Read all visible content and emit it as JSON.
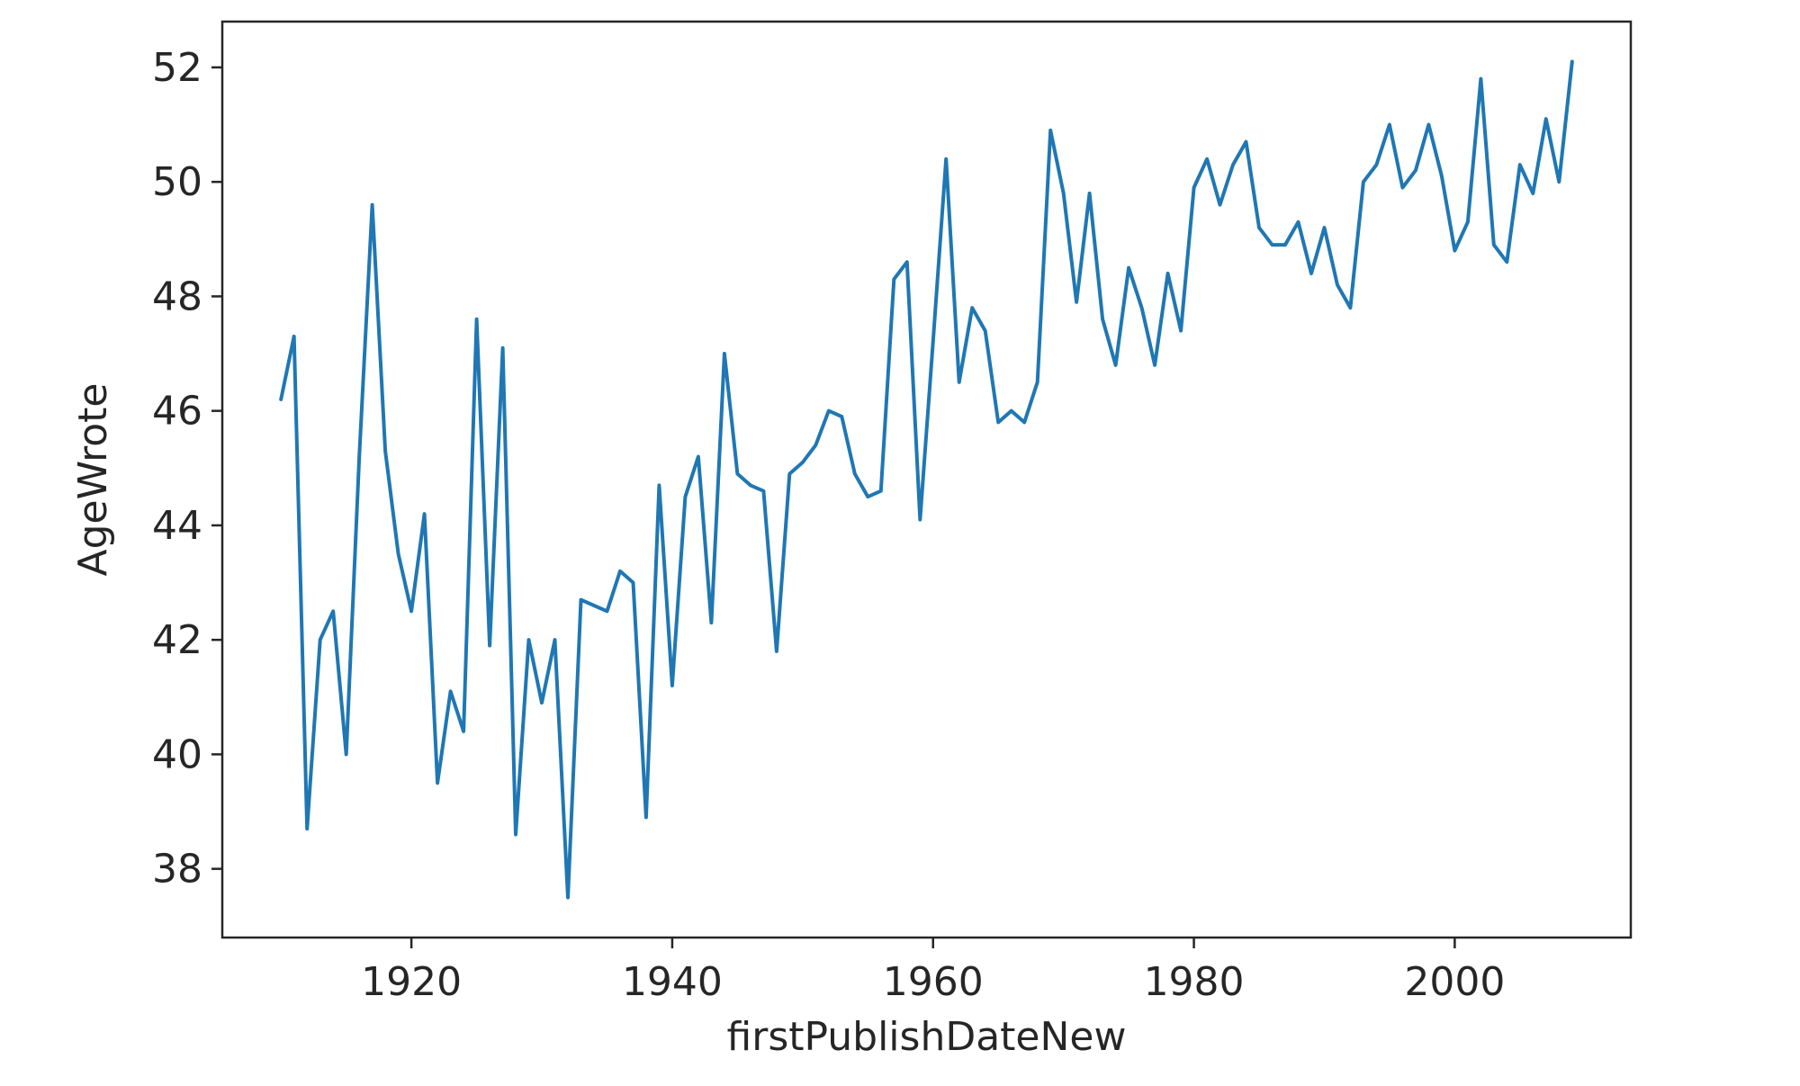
{
  "chart_data": {
    "type": "line",
    "xlabel": "firstPublishDateNew",
    "ylabel": "AgeWrote",
    "xlim": [
      1905.5,
      2013.5
    ],
    "ylim": [
      36.8,
      52.8
    ],
    "xticks": [
      1920,
      1940,
      1960,
      1980,
      2000
    ],
    "yticks": [
      38,
      40,
      42,
      44,
      46,
      48,
      50,
      52
    ],
    "grid": false,
    "line_color": "#1f77b4",
    "series": [
      {
        "x": [
          1910,
          1911,
          1912,
          1913,
          1914,
          1915,
          1916,
          1917,
          1918,
          1919,
          1920,
          1921,
          1922,
          1923,
          1924,
          1925,
          1926,
          1927,
          1928,
          1929,
          1930,
          1931,
          1932,
          1933,
          1934,
          1935,
          1936,
          1937,
          1938,
          1939,
          1940,
          1941,
          1942,
          1943,
          1944,
          1945,
          1946,
          1947,
          1948,
          1949,
          1950,
          1951,
          1952,
          1953,
          1954,
          1955,
          1956,
          1957,
          1958,
          1959,
          1960,
          1961,
          1962,
          1963,
          1964,
          1965,
          1966,
          1967,
          1968,
          1969,
          1970,
          1971,
          1972,
          1973,
          1974,
          1975,
          1976,
          1977,
          1978,
          1979,
          1980,
          1981,
          1982,
          1983,
          1984,
          1985,
          1986,
          1987,
          1988,
          1989,
          1990,
          1991,
          1992,
          1993,
          1994,
          1995,
          1996,
          1997,
          1998,
          1999,
          2000,
          2001,
          2002,
          2003,
          2004,
          2005,
          2006,
          2007,
          2008,
          2009
        ],
        "y": [
          46.2,
          47.3,
          38.7,
          42.0,
          42.5,
          40.0,
          45.2,
          49.6,
          45.3,
          43.5,
          42.5,
          44.2,
          39.5,
          41.1,
          40.4,
          47.6,
          41.9,
          47.1,
          38.6,
          42.0,
          40.9,
          42.0,
          37.5,
          42.7,
          42.6,
          42.5,
          43.2,
          43.0,
          38.9,
          44.7,
          41.2,
          44.5,
          45.2,
          42.3,
          47.0,
          44.9,
          44.7,
          44.6,
          41.8,
          44.9,
          45.1,
          45.4,
          46.0,
          45.9,
          44.9,
          44.5,
          44.6,
          48.3,
          48.6,
          44.1,
          47.2,
          50.4,
          46.5,
          47.8,
          47.4,
          45.8,
          46.0,
          45.8,
          46.5,
          50.9,
          49.8,
          47.9,
          49.8,
          47.6,
          46.8,
          48.5,
          47.8,
          46.8,
          48.4,
          47.4,
          49.9,
          50.4,
          49.6,
          50.3,
          50.7,
          49.2,
          48.9,
          48.9,
          49.3,
          48.4,
          49.2,
          48.2,
          47.8,
          50.0,
          50.3,
          51.0,
          49.9,
          50.2,
          51.0,
          50.1,
          48.8,
          49.3,
          51.8,
          48.9,
          48.6,
          50.3,
          49.8,
          51.1,
          50.0,
          52.1
        ]
      }
    ]
  }
}
